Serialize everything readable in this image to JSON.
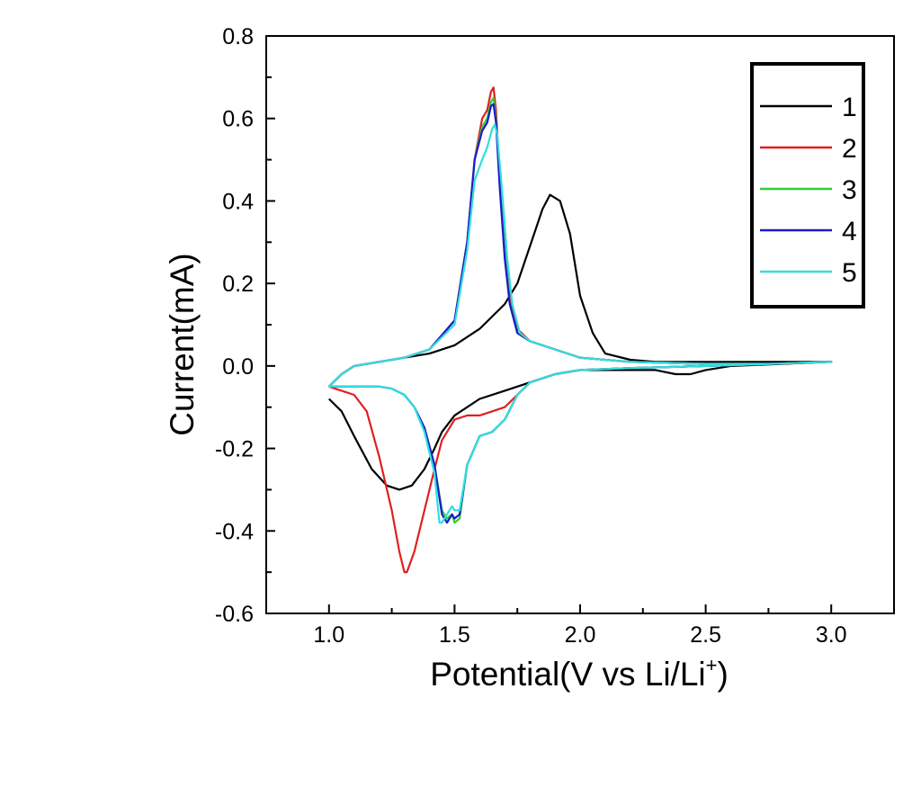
{
  "chart_data": {
    "type": "line",
    "xlabel": "Potential(V vs Li/Li",
    "xlabel_superscript": "+",
    "xlabel_suffix": ")",
    "ylabel": "Current(mA)",
    "xlim": [
      0.75,
      3.25
    ],
    "ylim": [
      -0.6,
      0.8
    ],
    "x_ticks": [
      1.0,
      1.5,
      2.0,
      2.5,
      3.0
    ],
    "x_tick_labels": [
      "1.0",
      "1.5",
      "2.0",
      "2.5",
      "3.0"
    ],
    "y_ticks": [
      -0.6,
      -0.4,
      -0.2,
      0.0,
      0.2,
      0.4,
      0.6,
      0.8
    ],
    "y_tick_labels": [
      "-0.6",
      "-0.4",
      "-0.2",
      "0.0",
      "0.2",
      "0.4",
      "0.6",
      "0.8"
    ],
    "grid": false,
    "legend_position": "top-right",
    "series": [
      {
        "name": "1",
        "color": "#000000",
        "x": [
          1.0,
          1.05,
          1.1,
          1.2,
          1.3,
          1.4,
          1.5,
          1.6,
          1.7,
          1.75,
          1.8,
          1.85,
          1.88,
          1.92,
          1.96,
          2.0,
          2.05,
          2.1,
          2.2,
          2.3,
          2.5,
          2.75,
          3.0,
          3.0,
          2.8,
          2.6,
          2.5,
          2.44,
          2.38,
          2.3,
          2.2,
          2.0,
          1.9,
          1.8,
          1.7,
          1.6,
          1.5,
          1.45,
          1.42,
          1.38,
          1.33,
          1.28,
          1.23,
          1.17,
          1.1,
          1.05,
          1.0
        ],
        "y": [
          -0.05,
          -0.02,
          0.0,
          0.01,
          0.02,
          0.03,
          0.05,
          0.09,
          0.15,
          0.2,
          0.29,
          0.38,
          0.415,
          0.4,
          0.32,
          0.17,
          0.08,
          0.03,
          0.015,
          0.01,
          0.01,
          0.01,
          0.01,
          0.01,
          0.005,
          0.0,
          -0.01,
          -0.02,
          -0.02,
          -0.01,
          -0.01,
          -0.01,
          -0.02,
          -0.04,
          -0.06,
          -0.08,
          -0.12,
          -0.16,
          -0.2,
          -0.25,
          -0.29,
          -0.3,
          -0.29,
          -0.25,
          -0.17,
          -0.11,
          -0.08
        ]
      },
      {
        "name": "2",
        "color": "#e02020",
        "x": [
          1.0,
          1.05,
          1.1,
          1.2,
          1.3,
          1.4,
          1.5,
          1.55,
          1.58,
          1.61,
          1.63,
          1.645,
          1.655,
          1.665,
          1.68,
          1.7,
          1.72,
          1.75,
          1.8,
          1.9,
          2.0,
          2.2,
          2.5,
          2.75,
          3.0,
          3.0,
          2.75,
          2.5,
          2.2,
          2.0,
          1.9,
          1.8,
          1.75,
          1.7,
          1.65,
          1.6,
          1.55,
          1.5,
          1.45,
          1.42,
          1.38,
          1.34,
          1.31,
          1.3,
          1.28,
          1.25,
          1.2,
          1.15,
          1.1,
          1.05,
          1.0
        ],
        "y": [
          -0.05,
          -0.02,
          0.0,
          0.01,
          0.02,
          0.04,
          0.11,
          0.3,
          0.5,
          0.6,
          0.62,
          0.665,
          0.675,
          0.62,
          0.45,
          0.28,
          0.16,
          0.09,
          0.06,
          0.04,
          0.02,
          0.01,
          0.005,
          0.005,
          0.01,
          0.01,
          0.005,
          0.0,
          -0.005,
          -0.01,
          -0.02,
          -0.04,
          -0.07,
          -0.1,
          -0.11,
          -0.12,
          -0.12,
          -0.13,
          -0.18,
          -0.25,
          -0.35,
          -0.45,
          -0.5,
          -0.5,
          -0.45,
          -0.35,
          -0.22,
          -0.11,
          -0.07,
          -0.06,
          -0.05
        ]
      },
      {
        "name": "3",
        "color": "#33cc33",
        "x": [
          1.0,
          1.05,
          1.1,
          1.2,
          1.3,
          1.4,
          1.5,
          1.55,
          1.58,
          1.61,
          1.63,
          1.645,
          1.655,
          1.665,
          1.68,
          1.7,
          1.72,
          1.75,
          1.8,
          1.9,
          2.0,
          2.2,
          2.5,
          2.75,
          3.0,
          3.0,
          2.75,
          2.5,
          2.2,
          2.0,
          1.9,
          1.8,
          1.75,
          1.7,
          1.65,
          1.6,
          1.55,
          1.52,
          1.5,
          1.49,
          1.47,
          1.45,
          1.42,
          1.38,
          1.34,
          1.3,
          1.25,
          1.2,
          1.15,
          1.1,
          1.05,
          1.0
        ],
        "y": [
          -0.05,
          -0.02,
          0.0,
          0.01,
          0.02,
          0.04,
          0.11,
          0.3,
          0.5,
          0.58,
          0.6,
          0.64,
          0.65,
          0.6,
          0.44,
          0.27,
          0.15,
          0.08,
          0.06,
          0.04,
          0.02,
          0.01,
          0.005,
          0.005,
          0.01,
          0.01,
          0.005,
          0.0,
          -0.005,
          -0.01,
          -0.02,
          -0.04,
          -0.07,
          -0.13,
          -0.16,
          -0.17,
          -0.24,
          -0.37,
          -0.38,
          -0.36,
          -0.37,
          -0.35,
          -0.24,
          -0.15,
          -0.1,
          -0.07,
          -0.055,
          -0.05,
          -0.05,
          -0.05,
          -0.05,
          -0.05
        ]
      },
      {
        "name": "4",
        "color": "#1a1acc",
        "x": [
          1.0,
          1.05,
          1.1,
          1.2,
          1.3,
          1.4,
          1.5,
          1.55,
          1.58,
          1.61,
          1.63,
          1.645,
          1.655,
          1.665,
          1.68,
          1.7,
          1.72,
          1.75,
          1.8,
          1.9,
          2.0,
          2.2,
          2.5,
          2.75,
          3.0,
          3.0,
          2.75,
          2.5,
          2.2,
          2.0,
          1.9,
          1.8,
          1.75,
          1.7,
          1.65,
          1.6,
          1.55,
          1.52,
          1.5,
          1.49,
          1.47,
          1.45,
          1.42,
          1.38,
          1.34,
          1.3,
          1.25,
          1.2,
          1.15,
          1.1,
          1.05,
          1.0
        ],
        "y": [
          -0.05,
          -0.02,
          0.0,
          0.01,
          0.02,
          0.04,
          0.11,
          0.3,
          0.5,
          0.57,
          0.59,
          0.63,
          0.635,
          0.59,
          0.43,
          0.26,
          0.15,
          0.08,
          0.06,
          0.04,
          0.02,
          0.01,
          0.005,
          0.005,
          0.01,
          0.01,
          0.005,
          0.0,
          -0.005,
          -0.01,
          -0.02,
          -0.04,
          -0.07,
          -0.13,
          -0.16,
          -0.17,
          -0.24,
          -0.36,
          -0.37,
          -0.36,
          -0.38,
          -0.36,
          -0.24,
          -0.15,
          -0.1,
          -0.07,
          -0.055,
          -0.05,
          -0.05,
          -0.05,
          -0.05,
          -0.05
        ]
      },
      {
        "name": "5",
        "color": "#33dddd",
        "x": [
          1.0,
          1.05,
          1.1,
          1.2,
          1.3,
          1.4,
          1.5,
          1.55,
          1.58,
          1.61,
          1.63,
          1.65,
          1.66,
          1.67,
          1.69,
          1.71,
          1.73,
          1.76,
          1.8,
          1.9,
          2.0,
          2.2,
          2.5,
          2.75,
          3.0,
          3.0,
          2.75,
          2.5,
          2.2,
          2.0,
          1.9,
          1.8,
          1.75,
          1.7,
          1.65,
          1.6,
          1.55,
          1.52,
          1.5,
          1.49,
          1.47,
          1.45,
          1.44,
          1.42,
          1.38,
          1.34,
          1.3,
          1.25,
          1.2,
          1.15,
          1.1,
          1.05,
          1.0
        ],
        "y": [
          -0.05,
          -0.02,
          0.0,
          0.01,
          0.02,
          0.04,
          0.1,
          0.28,
          0.45,
          0.5,
          0.53,
          0.575,
          0.585,
          0.56,
          0.42,
          0.26,
          0.15,
          0.08,
          0.06,
          0.04,
          0.02,
          0.01,
          0.005,
          0.005,
          0.01,
          0.01,
          0.005,
          0.0,
          -0.005,
          -0.01,
          -0.02,
          -0.04,
          -0.07,
          -0.13,
          -0.16,
          -0.17,
          -0.24,
          -0.35,
          -0.35,
          -0.34,
          -0.36,
          -0.38,
          -0.38,
          -0.26,
          -0.16,
          -0.1,
          -0.07,
          -0.055,
          -0.05,
          -0.05,
          -0.05,
          -0.05,
          -0.05
        ]
      }
    ]
  }
}
